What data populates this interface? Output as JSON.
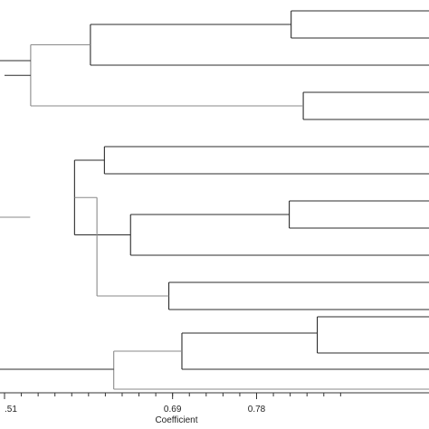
{
  "chart_data": {
    "type": "dendrogram",
    "xlabel": "Coefficient",
    "xlim": [
      0.5,
      0.87
    ],
    "ticks": [
      {
        "value": 0.51,
        "label": ".51"
      },
      {
        "value": 0.69,
        "label": "0.69"
      },
      {
        "value": 0.78,
        "label": "0.78"
      }
    ],
    "minor_tick_step": 0.018,
    "leaves": 14,
    "merges": [
      {
        "height": 0.817,
        "left": 0,
        "right": 1,
        "shade": "dark"
      },
      {
        "height": 0.602,
        "left": "m0",
        "right": 2,
        "shade": "dark"
      },
      {
        "height": 0.83,
        "left": 3,
        "right": 4,
        "shade": "dark"
      },
      {
        "height": 0.538,
        "left": "m1",
        "right": "m2",
        "shade": "light"
      },
      {
        "height": 0.51,
        "left": "m3",
        "right": "m3",
        "shade": "dark"
      },
      {
        "height": 0.617,
        "left": 5,
        "right": 6,
        "shade": "dark"
      },
      {
        "height": 0.815,
        "left": 7,
        "right": 8,
        "shade": "dark"
      },
      {
        "height": 0.645,
        "left": "m6",
        "right": 9,
        "shade": "dark"
      },
      {
        "height": 0.585,
        "left": "m5",
        "right": "m7",
        "shade": "dark"
      },
      {
        "height": 0.686,
        "left": 10,
        "right": 11,
        "shade": "dark"
      },
      {
        "height": 0.609,
        "left": "m8",
        "right": "m9",
        "shade": "light"
      }
    ]
  }
}
